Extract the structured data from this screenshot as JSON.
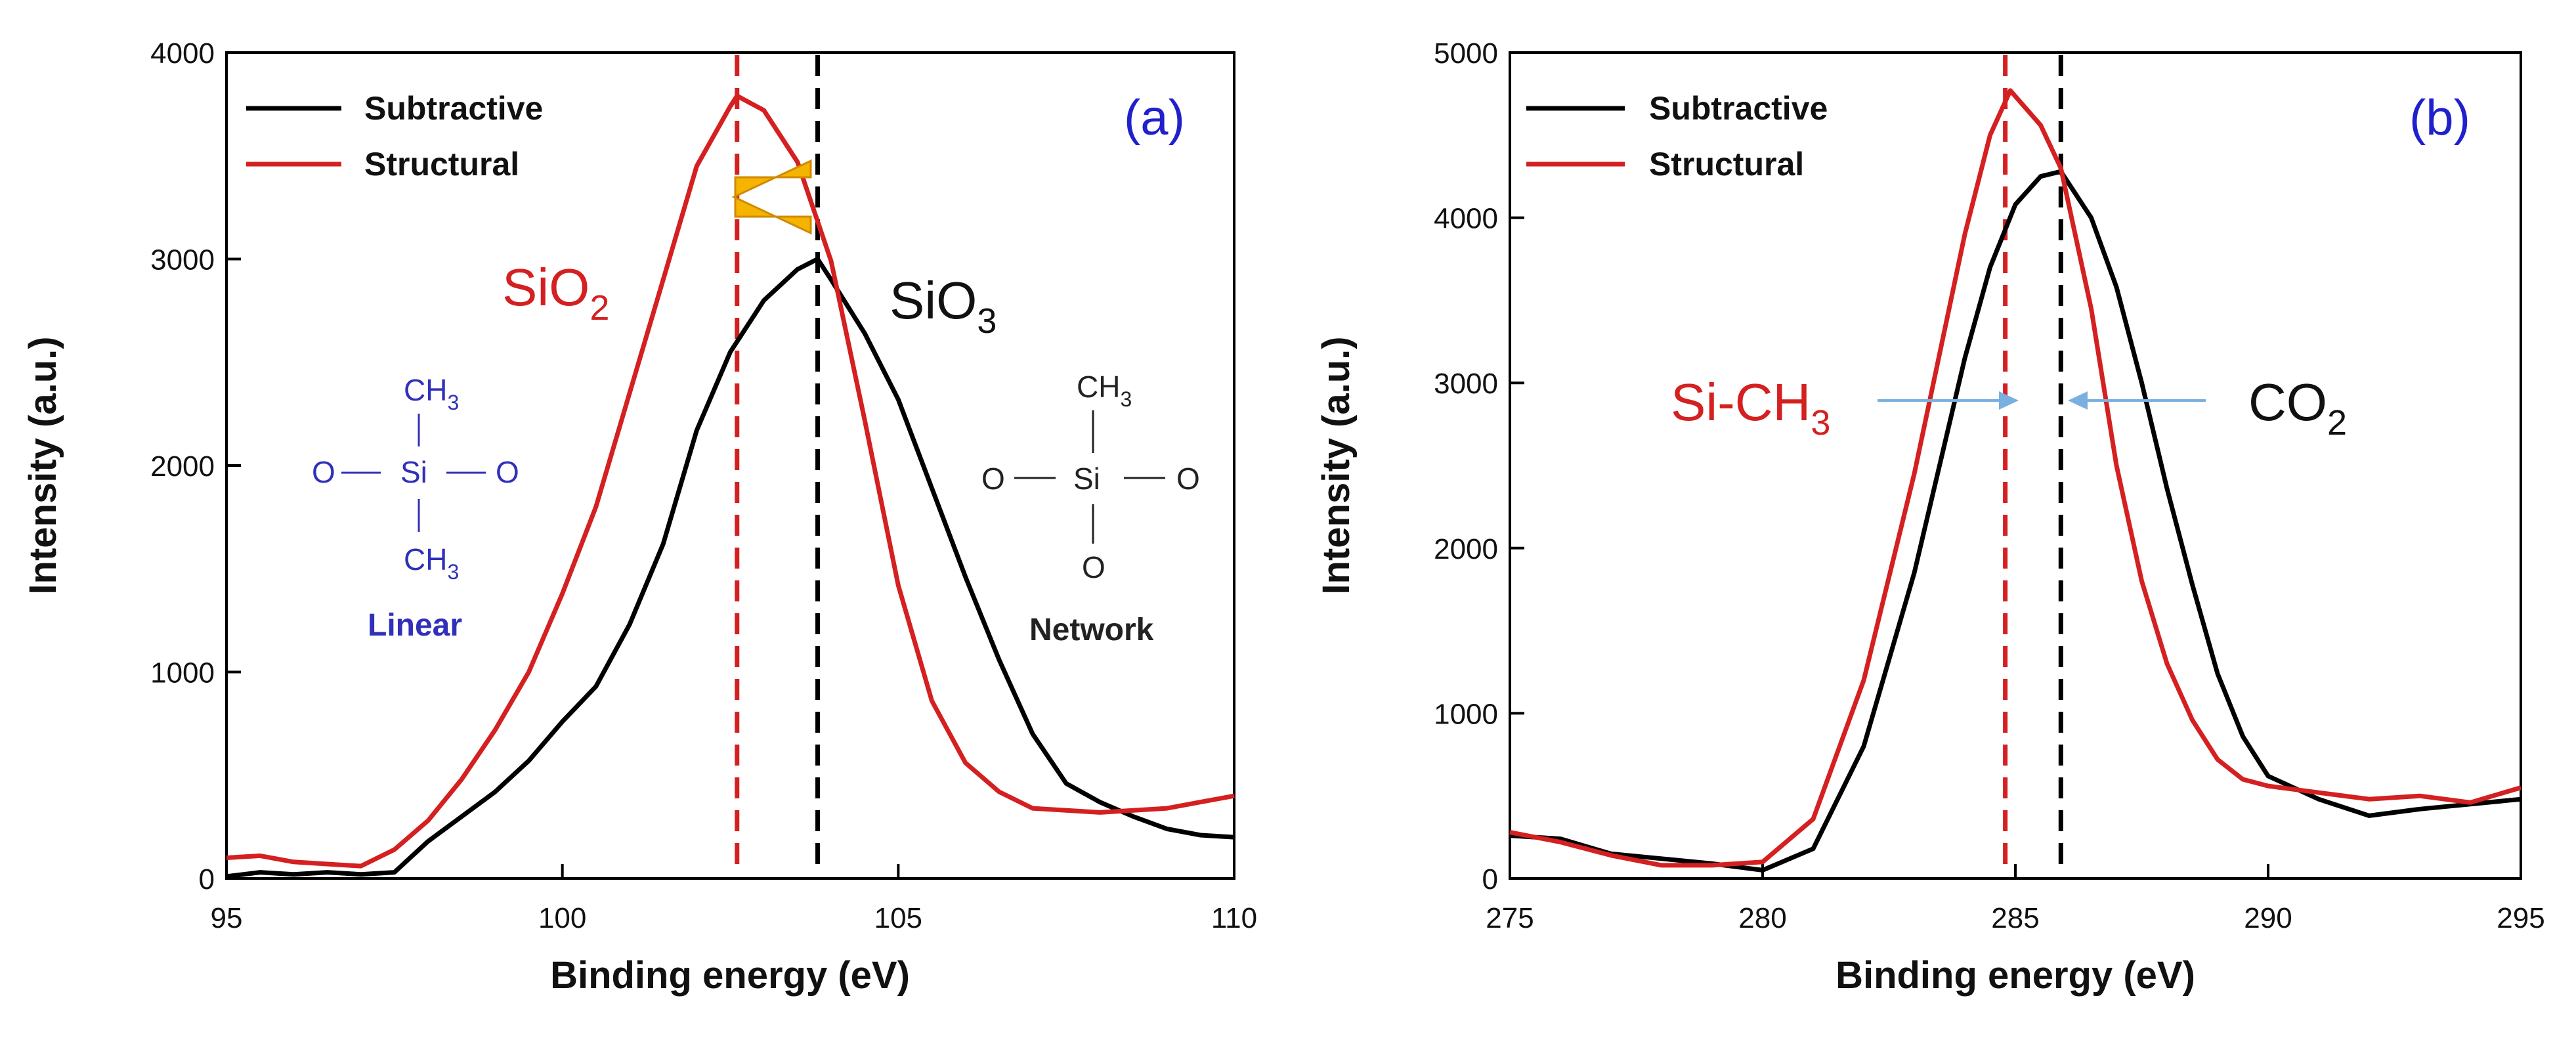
{
  "colors": {
    "subtractive": "#000000",
    "structural": "#d42020",
    "panel_label": "#2020cc",
    "linear_struct": "#3030b8",
    "network_struct": "#222222",
    "shift_arrow": "#f5b400",
    "pointer_arrow": "#7ab0e0"
  },
  "chart_data": [
    {
      "type": "line",
      "panel": "(a)",
      "xlabel": "Binding energy (eV)",
      "ylabel": "Intensity (a.u.)",
      "xlim": [
        95,
        110
      ],
      "ylim": [
        0,
        4000
      ],
      "xticks": [
        95,
        100,
        105,
        110
      ],
      "yticks": [
        0,
        1000,
        2000,
        3000,
        4000
      ],
      "legend": [
        "Subtractive",
        "Structural"
      ],
      "legend_position": "top-left",
      "series": [
        {
          "name": "Subtractive",
          "x": [
            95,
            95.5,
            96,
            96.5,
            97,
            97.5,
            98,
            98.5,
            99,
            99.5,
            100,
            100.5,
            101,
            101.5,
            102,
            102.5,
            103,
            103.5,
            103.8,
            104,
            104.5,
            105,
            105.5,
            106,
            106.5,
            107,
            107.5,
            108,
            108.5,
            109,
            109.5,
            110
          ],
          "y": [
            10,
            30,
            20,
            30,
            20,
            30,
            180,
            300,
            420,
            570,
            760,
            930,
            1230,
            1620,
            2170,
            2550,
            2800,
            2950,
            3000,
            2900,
            2640,
            2320,
            1890,
            1460,
            1060,
            700,
            460,
            370,
            300,
            240,
            210,
            200
          ]
        },
        {
          "name": "Structural",
          "x": [
            95,
            95.5,
            96,
            96.5,
            97,
            97.5,
            98,
            98.5,
            99,
            99.5,
            100,
            100.5,
            101,
            101.5,
            102,
            102.5,
            102.6,
            103,
            103.5,
            104,
            104.5,
            105,
            105.5,
            106,
            106.5,
            107,
            107.5,
            108,
            108.5,
            109,
            109.5,
            110
          ],
          "y": [
            100,
            110,
            80,
            70,
            60,
            140,
            280,
            480,
            720,
            1000,
            1380,
            1800,
            2350,
            2900,
            3450,
            3740,
            3790,
            3720,
            3470,
            2990,
            2220,
            1420,
            860,
            560,
            420,
            340,
            330,
            320,
            330,
            340,
            370,
            400
          ]
        }
      ],
      "vlines": [
        {
          "x": 102.6,
          "series": "Structural"
        },
        {
          "x": 103.8,
          "series": "Subtractive"
        }
      ],
      "annotations": {
        "peak_left": {
          "main": "SiO",
          "sub": "2"
        },
        "peak_right": {
          "main": "SiO",
          "sub": "3"
        },
        "panel_label": "(a)"
      },
      "structures": {
        "linear": {
          "top": "CH",
          "top_sub": "3",
          "left": "O",
          "center": "Si",
          "right": "O",
          "bottom": "CH",
          "bottom_sub": "3",
          "caption": "Linear"
        },
        "network": {
          "top": "CH",
          "top_sub": "3",
          "left": "O",
          "center": "Si",
          "right": "O",
          "bottom": "O",
          "caption": "Network"
        }
      }
    },
    {
      "type": "line",
      "panel": "(b)",
      "xlabel": "Binding energy (eV)",
      "ylabel": "Intensity (a.u.)",
      "xlim": [
        275,
        295
      ],
      "ylim": [
        0,
        5000
      ],
      "xticks": [
        275,
        280,
        285,
        290,
        295
      ],
      "yticks": [
        0,
        1000,
        2000,
        3000,
        4000,
        5000
      ],
      "legend": [
        "Subtractive",
        "Structural"
      ],
      "legend_position": "top-left",
      "series": [
        {
          "name": "Subtractive",
          "x": [
            275,
            276,
            277,
            278,
            279,
            280,
            281,
            282,
            283,
            284,
            284.5,
            285,
            285.5,
            285.9,
            286.5,
            287,
            287.5,
            288,
            288.5,
            289,
            289.5,
            290,
            291,
            292,
            293,
            294,
            295
          ],
          "y": [
            260,
            240,
            150,
            120,
            90,
            50,
            180,
            800,
            1850,
            3150,
            3700,
            4080,
            4250,
            4280,
            4000,
            3580,
            3000,
            2360,
            1780,
            1240,
            860,
            620,
            480,
            380,
            420,
            450,
            480
          ]
        },
        {
          "name": "Structural",
          "x": [
            275,
            276,
            277,
            278,
            279,
            280,
            281,
            282,
            283,
            284,
            284.5,
            284.9,
            285.5,
            285.9,
            286.5,
            287,
            287.5,
            288,
            288.5,
            289,
            289.5,
            290,
            291,
            292,
            293,
            294,
            295
          ],
          "y": [
            280,
            220,
            140,
            80,
            80,
            100,
            360,
            1200,
            2450,
            3900,
            4500,
            4770,
            4560,
            4300,
            3450,
            2500,
            1800,
            1300,
            960,
            720,
            600,
            560,
            520,
            480,
            500,
            460,
            550
          ]
        }
      ],
      "vlines": [
        {
          "x": 284.8,
          "series": "Structural"
        },
        {
          "x": 285.9,
          "series": "Subtractive"
        }
      ],
      "annotations": {
        "peak_left": {
          "main": "Si-CH",
          "sub": "3"
        },
        "peak_right": {
          "main": "CO",
          "sub": "2"
        },
        "panel_label": "(b)"
      }
    }
  ]
}
